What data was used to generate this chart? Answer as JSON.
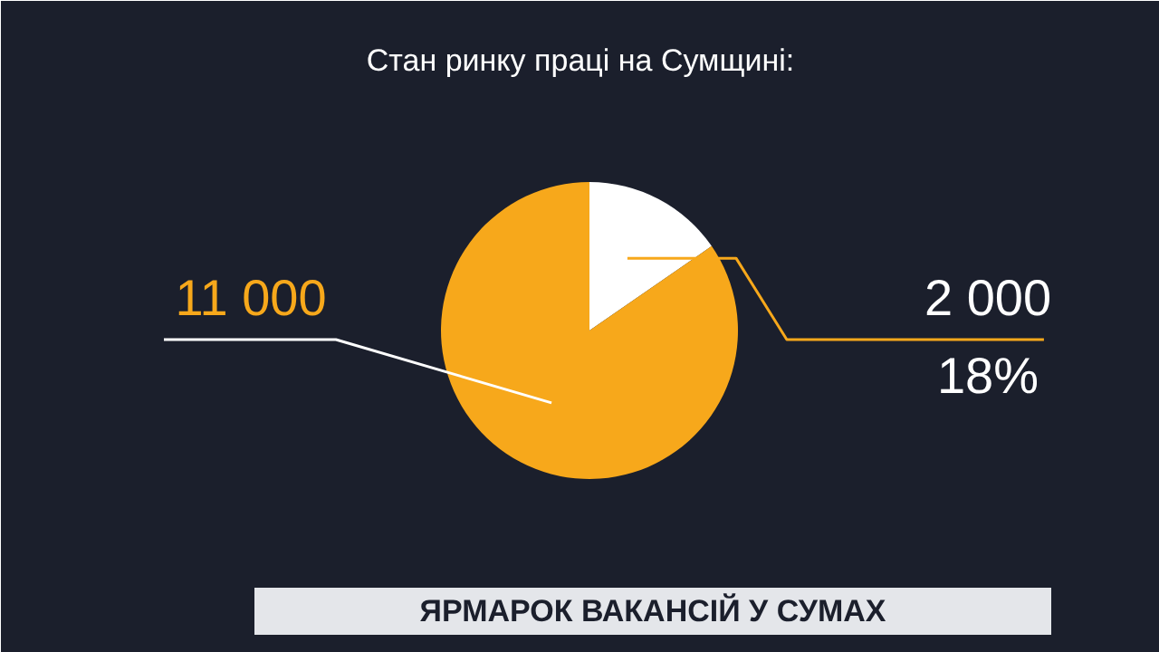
{
  "chart_data": {
    "type": "pie",
    "title": "Стан ринку праці на Сумщині:",
    "categories": [
      null,
      null
    ],
    "values": [
      2000,
      11000
    ],
    "colors": [
      "#ffffff",
      "#f7a81b"
    ],
    "value_labels": [
      "2 000",
      "11 000"
    ],
    "annotations": [
      {
        "text": "18%"
      },
      "ЯРМАРОК ВАКАНСІЙ У СУМАХ"
    ]
  }
}
